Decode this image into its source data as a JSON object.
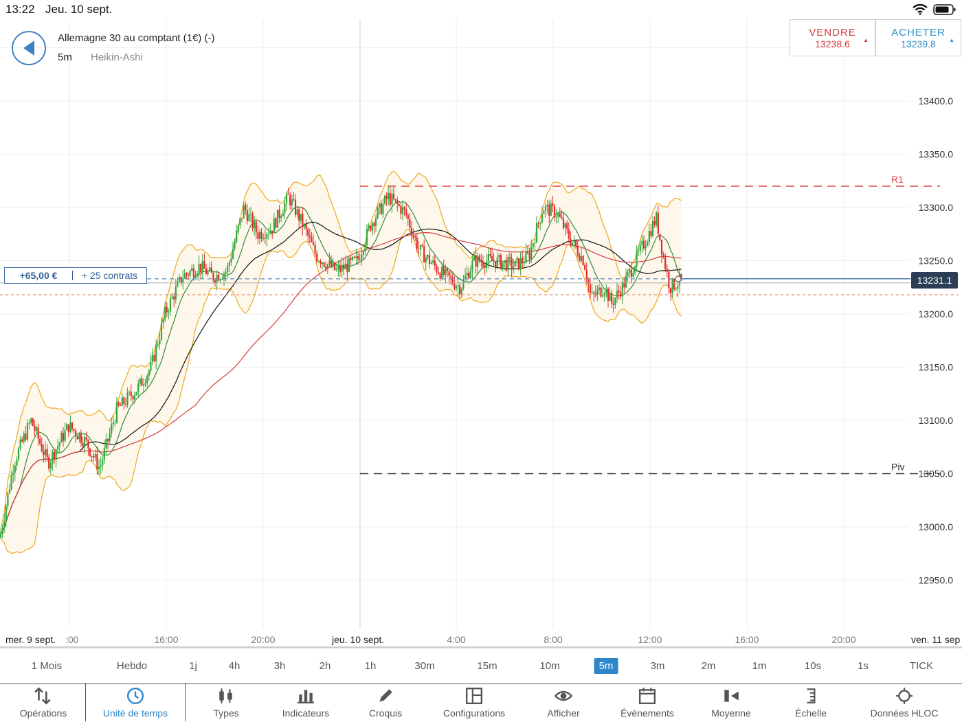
{
  "status": {
    "time": "13:22",
    "date": "Jeu. 10 sept."
  },
  "header": {
    "instrument": "Allemagne 30 au comptant (1€) (-)",
    "timeframe": "5m",
    "chart_type": "Heikin-Ashi"
  },
  "sell": {
    "label": "VENDRE",
    "price": "13238.6"
  },
  "buy": {
    "label": "ACHETER",
    "price": "13239.8"
  },
  "position": {
    "pnl": "+65,00 €",
    "contracts": "+ 25 contrats"
  },
  "current_price": "13231.1",
  "colors": {
    "up": "#2fa83a",
    "down": "#e02b2b",
    "accent": "#2d86c9",
    "sell": "#d43a3a",
    "buy": "#2a8fc9",
    "bollinger": "#f0ad2a"
  },
  "chart_data": {
    "type": "candlestick",
    "y_ticks": [
      "13400.0",
      "13350.0",
      "13300.0",
      "13250.0",
      "13200.0",
      "13150.0",
      "13100.0",
      "13050.0",
      "13000.0",
      "12950.0"
    ],
    "ylim": [
      12910,
      13450
    ],
    "x_labels": [
      "mer. 9 sept.",
      ":00",
      "16:00",
      "20:00",
      "jeu. 10 sept.",
      "4:00",
      "8:00",
      "12:00",
      "16:00",
      "20:00",
      "ven. 11 sep"
    ],
    "levels": [
      {
        "name": "R1",
        "value": 13320,
        "color": "#e04848"
      },
      {
        "name": "Piv",
        "value": 13050,
        "color": "#333333"
      }
    ],
    "entry_price": 13233,
    "stop_level": 13218,
    "price_path": [
      [
        0,
        12990
      ],
      [
        20,
        13060
      ],
      [
        45,
        13100
      ],
      [
        70,
        13060
      ],
      [
        100,
        13095
      ],
      [
        125,
        13080
      ],
      [
        145,
        13055
      ],
      [
        170,
        13110
      ],
      [
        200,
        13130
      ],
      [
        220,
        13150
      ],
      [
        240,
        13200
      ],
      [
        265,
        13235
      ],
      [
        290,
        13245
      ],
      [
        310,
        13235
      ],
      [
        330,
        13240
      ],
      [
        355,
        13300
      ],
      [
        375,
        13275
      ],
      [
        395,
        13280
      ],
      [
        420,
        13310
      ],
      [
        440,
        13285
      ],
      [
        460,
        13255
      ],
      [
        490,
        13240
      ],
      [
        520,
        13250
      ],
      [
        540,
        13285
      ],
      [
        565,
        13310
      ],
      [
        590,
        13295
      ],
      [
        610,
        13260
      ],
      [
        640,
        13240
      ],
      [
        670,
        13225
      ],
      [
        690,
        13250
      ],
      [
        720,
        13250
      ],
      [
        750,
        13245
      ],
      [
        770,
        13255
      ],
      [
        790,
        13300
      ],
      [
        810,
        13295
      ],
      [
        830,
        13270
      ],
      [
        850,
        13250
      ],
      [
        860,
        13215
      ],
      [
        880,
        13225
      ],
      [
        890,
        13210
      ],
      [
        910,
        13230
      ],
      [
        940,
        13270
      ],
      [
        955,
        13290
      ],
      [
        965,
        13255
      ],
      [
        975,
        13225
      ],
      [
        992,
        13232
      ]
    ]
  },
  "timeframes": [
    "1 Mois",
    "Hebdo",
    "1j",
    "4h",
    "3h",
    "2h",
    "1h",
    "30m",
    "15m",
    "10m",
    "5m",
    "3m",
    "2m",
    "1m",
    "10s",
    "1s",
    "TICK"
  ],
  "active_timeframe": "5m",
  "toolbar": [
    "Opérations",
    "Unité de temps",
    "Types",
    "Indicateurs",
    "Croquis",
    "Configurations",
    "Afficher",
    "Événements",
    "Moyenne",
    "Échelle",
    "Données HLOC"
  ],
  "active_tool": "Unité de temps"
}
